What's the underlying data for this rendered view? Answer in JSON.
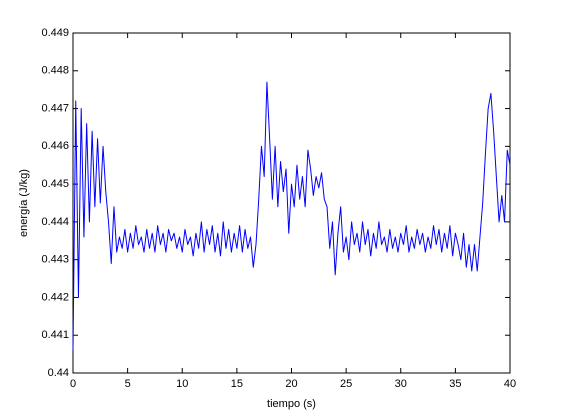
{
  "chart_data": {
    "type": "line",
    "xlabel": "tiempo (s)",
    "ylabel": "energía (J/kg)",
    "xlim": [
      0,
      40
    ],
    "xticks": [
      0,
      5,
      10,
      15,
      20,
      25,
      30,
      35,
      40
    ],
    "ylim": [
      0.44,
      0.449
    ],
    "yticks": [
      0.44,
      0.441,
      0.442,
      0.443,
      0.444,
      0.445,
      0.446,
      0.447,
      0.448,
      0.449
    ],
    "grid": false,
    "x": [
      0,
      0.25,
      0.5,
      0.75,
      1,
      1.25,
      1.5,
      1.75,
      2,
      2.25,
      2.5,
      2.75,
      3,
      3.25,
      3.5,
      3.75,
      4,
      4.25,
      4.5,
      4.75,
      5,
      5.25,
      5.5,
      5.75,
      6,
      6.25,
      6.5,
      6.75,
      7,
      7.25,
      7.5,
      7.75,
      8,
      8.25,
      8.5,
      8.75,
      9,
      9.25,
      9.5,
      9.75,
      10,
      10.25,
      10.5,
      10.75,
      11,
      11.25,
      11.5,
      11.75,
      12,
      12.25,
      12.5,
      12.75,
      13,
      13.25,
      13.5,
      13.75,
      14,
      14.25,
      14.5,
      14.75,
      15,
      15.25,
      15.5,
      15.75,
      16,
      16.25,
      16.5,
      16.75,
      17,
      17.25,
      17.5,
      17.75,
      18,
      18.25,
      18.5,
      18.75,
      19,
      19.25,
      19.5,
      19.75,
      20,
      20.25,
      20.5,
      20.75,
      21,
      21.25,
      21.5,
      21.75,
      22,
      22.25,
      22.5,
      22.75,
      23,
      23.25,
      23.5,
      23.75,
      24,
      24.25,
      24.5,
      24.75,
      25,
      25.25,
      25.5,
      25.75,
      26,
      26.25,
      26.5,
      26.75,
      27,
      27.25,
      27.5,
      27.75,
      28,
      28.25,
      28.5,
      28.75,
      29,
      29.25,
      29.5,
      29.75,
      30,
      30.25,
      30.5,
      30.75,
      31,
      31.25,
      31.5,
      31.75,
      32,
      32.25,
      32.5,
      32.75,
      33,
      33.25,
      33.5,
      33.75,
      34,
      34.25,
      34.5,
      34.75,
      35,
      35.25,
      35.5,
      35.75,
      36,
      36.25,
      36.5,
      36.75,
      37,
      37.25,
      37.5,
      37.75,
      38,
      38.25,
      38.5,
      38.75,
      39,
      39.25,
      39.5,
      39.75,
      40
    ],
    "series": [
      {
        "color": "#0000ff",
        "values": [
          0.4406,
          0.4472,
          0.442,
          0.447,
          0.4436,
          0.4466,
          0.444,
          0.4464,
          0.4444,
          0.4462,
          0.4445,
          0.446,
          0.4448,
          0.444,
          0.4429,
          0.4444,
          0.4432,
          0.4436,
          0.4433,
          0.4438,
          0.4432,
          0.4437,
          0.4433,
          0.4439,
          0.4434,
          0.4436,
          0.4432,
          0.4438,
          0.4433,
          0.4437,
          0.4432,
          0.4439,
          0.4434,
          0.4437,
          0.4432,
          0.4438,
          0.4435,
          0.4437,
          0.4433,
          0.4436,
          0.4432,
          0.4438,
          0.4434,
          0.4436,
          0.4431,
          0.4437,
          0.4433,
          0.444,
          0.4432,
          0.4438,
          0.4434,
          0.4439,
          0.4432,
          0.4437,
          0.4431,
          0.444,
          0.4433,
          0.4438,
          0.4432,
          0.4437,
          0.4433,
          0.4439,
          0.4432,
          0.4438,
          0.4433,
          0.4436,
          0.4428,
          0.4434,
          0.4446,
          0.446,
          0.4452,
          0.4477,
          0.4462,
          0.4446,
          0.446,
          0.4444,
          0.4456,
          0.4448,
          0.4454,
          0.4437,
          0.445,
          0.4444,
          0.4455,
          0.4446,
          0.4452,
          0.4444,
          0.4459,
          0.4454,
          0.4447,
          0.4452,
          0.4449,
          0.4453,
          0.4446,
          0.4444,
          0.4433,
          0.444,
          0.4426,
          0.4437,
          0.4444,
          0.4432,
          0.4436,
          0.443,
          0.444,
          0.4434,
          0.4437,
          0.4432,
          0.444,
          0.4434,
          0.4438,
          0.4431,
          0.4437,
          0.4433,
          0.444,
          0.4434,
          0.4436,
          0.4432,
          0.4438,
          0.4433,
          0.4436,
          0.4432,
          0.4437,
          0.4434,
          0.4439,
          0.4432,
          0.4436,
          0.4433,
          0.4438,
          0.4434,
          0.4437,
          0.4432,
          0.4436,
          0.4433,
          0.4439,
          0.4434,
          0.4438,
          0.4432,
          0.4437,
          0.4433,
          0.4439,
          0.4431,
          0.4437,
          0.4434,
          0.443,
          0.4437,
          0.4428,
          0.4434,
          0.4427,
          0.4434,
          0.4427,
          0.4436,
          0.4445,
          0.4458,
          0.447,
          0.4474,
          0.4464,
          0.4452,
          0.444,
          0.4447,
          0.444,
          0.4459,
          0.4455
        ]
      }
    ]
  }
}
